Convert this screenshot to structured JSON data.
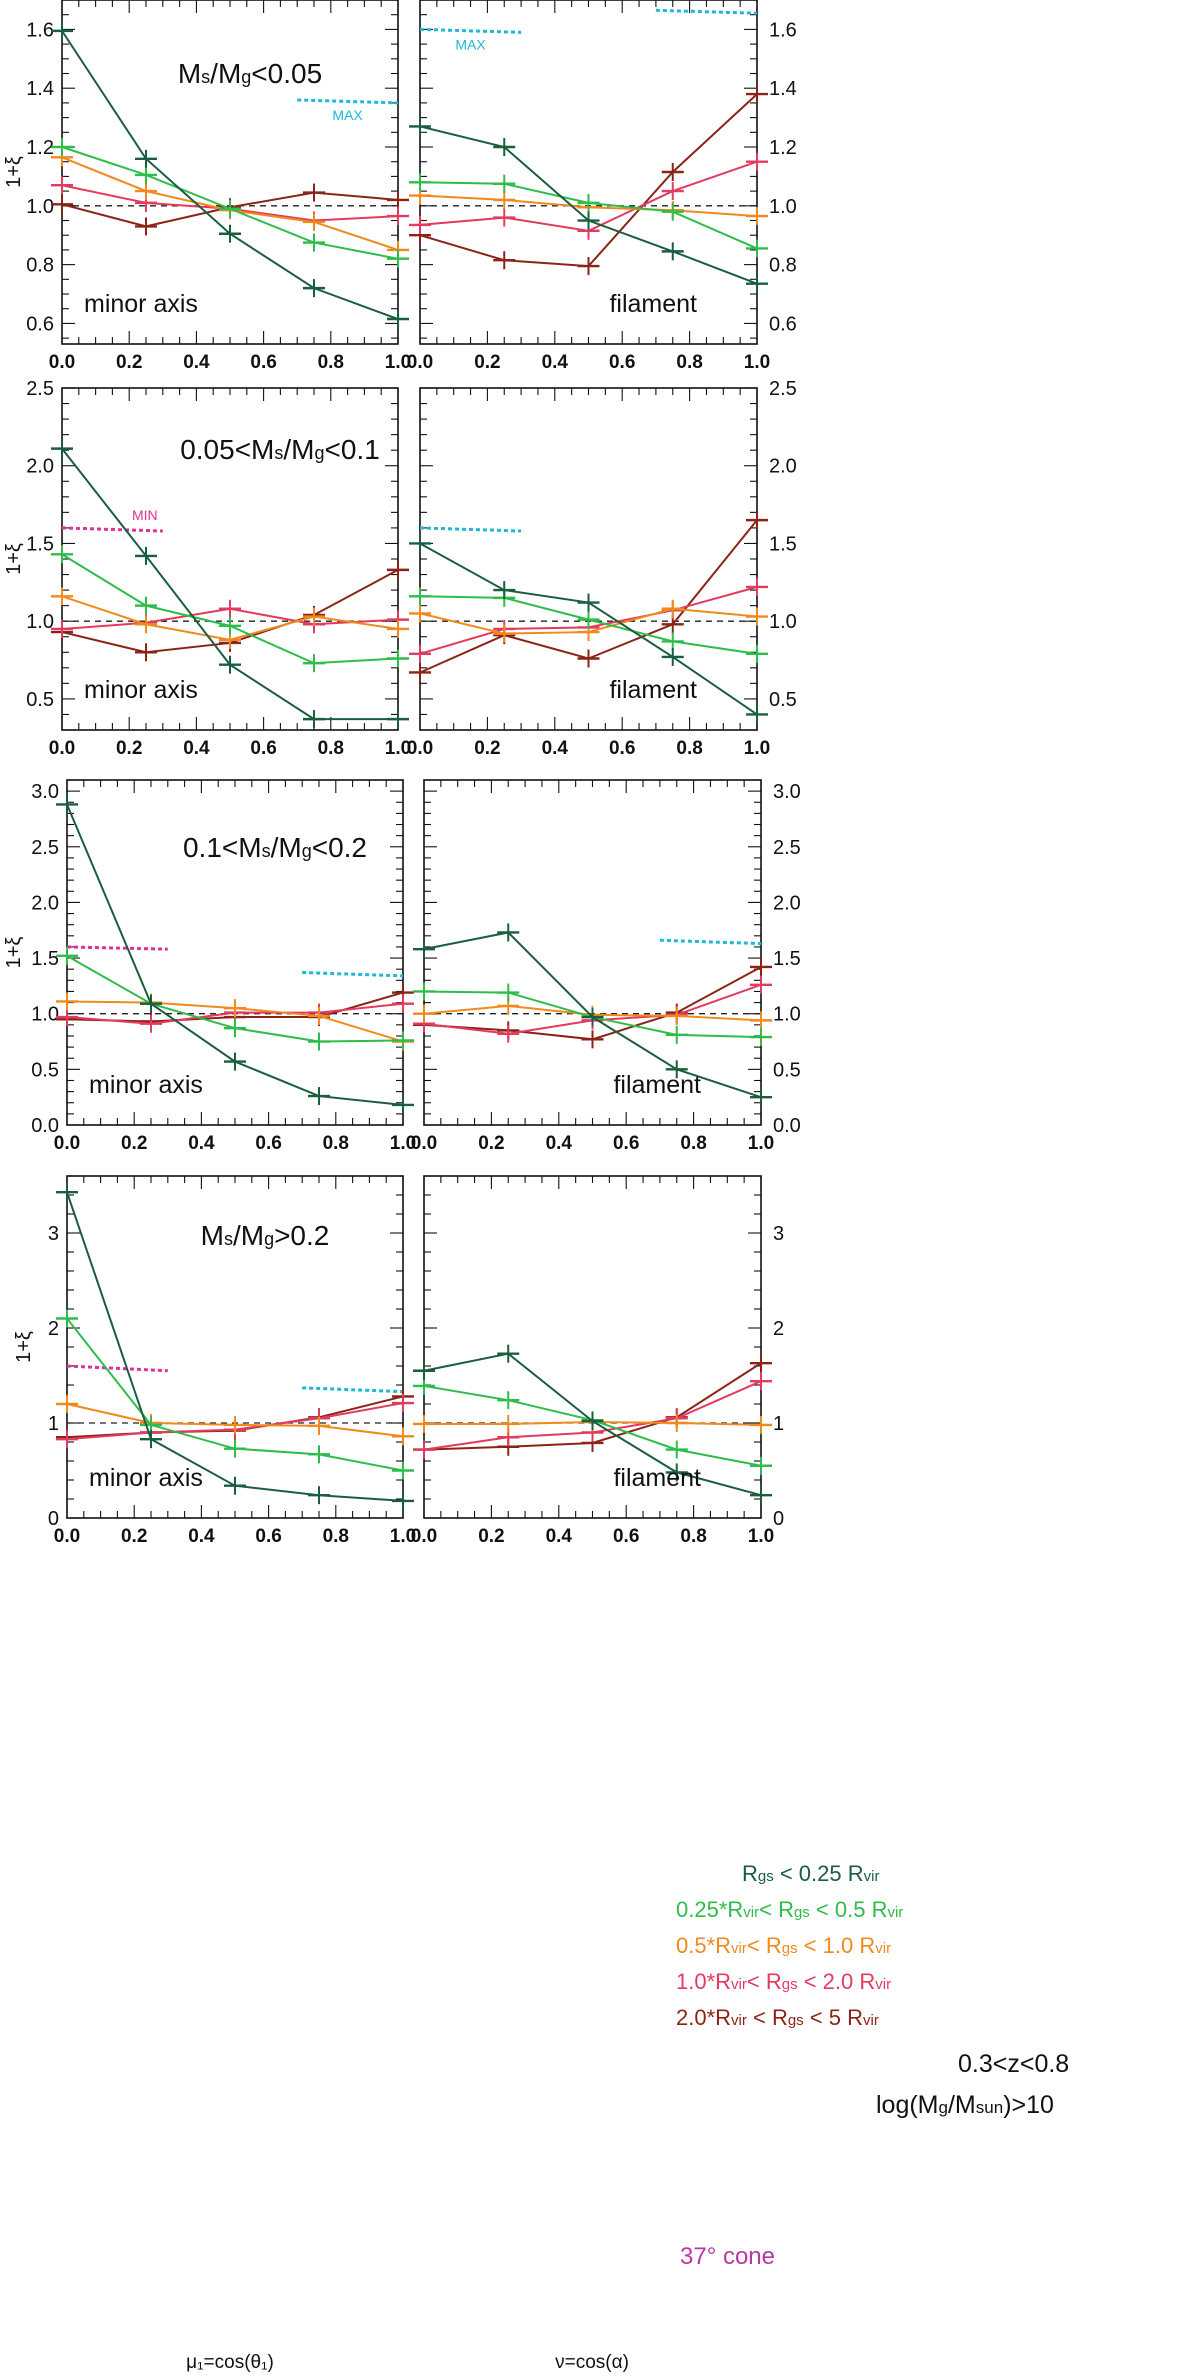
{
  "colors": {
    "r1": "#1a5e3f",
    "r2": "#2ebd4a",
    "r3": "#f08a1c",
    "r4": "#e33a5f",
    "r5": "#8b2416",
    "max_line": "#1fb8d6",
    "min_line": "#e0309a",
    "cone_text": "#b83aa0",
    "reference": "#222222"
  },
  "legend": {
    "entries": [
      {
        "key": "r1",
        "text": "R",
        "sub": "gs",
        "rest": " < 0.25 R",
        "sub2": "vir"
      },
      {
        "key": "r2",
        "text": "0.25*R",
        "sub": "vir",
        "rest": "< R",
        "sub2": "gs",
        "rest2": " < 0.5 R",
        "sub3": "vir"
      },
      {
        "key": "r3",
        "text": "0.5*R",
        "sub": "vir",
        "rest": "< R",
        "sub2": "gs",
        "rest2": " < 1.0 R",
        "sub3": "vir"
      },
      {
        "key": "r4",
        "text": "1.0*R",
        "sub": "vir",
        "rest": "< R",
        "sub2": "gs",
        "rest2": " < 2.0 R",
        "sub3": "vir"
      },
      {
        "key": "r5",
        "text": "2.0*R",
        "sub": "vir",
        "rest": " < R",
        "sub2": "gs",
        "rest2": " < 5 R",
        "sub3": "vir"
      }
    ],
    "redshift": "0.3<z<0.8",
    "mass_pre": "log(M",
    "mass_sub": "g",
    "mass_mid": "/M",
    "mass_sub2": "sun",
    "mass_post": ")>10",
    "cone": "37° cone"
  },
  "chart_data": {
    "type": "line",
    "x": [
      0.0,
      0.25,
      0.5,
      0.75,
      1.0
    ],
    "x_ticks": [
      "0.0",
      "0.2",
      "0.4",
      "0.6",
      "0.8",
      "1.0"
    ],
    "xlabel_left": "μ₁=cos(θ₁)",
    "xlabel_right": "ν=cos(α)",
    "ylabel": "1+ξ",
    "series_names": [
      "r1",
      "r2",
      "r3",
      "r4",
      "r5"
    ],
    "rows": [
      {
        "label_parts": [
          "M",
          "s",
          "/M",
          "g",
          "<0.05"
        ],
        "ylim": [
          0.53,
          1.7
        ],
        "yticks": [
          0.6,
          0.8,
          1.0,
          1.2,
          1.4,
          1.6
        ],
        "ytick_labels": [
          "0.6",
          "0.8",
          "1.0",
          "1.2",
          "1.4",
          "1.6"
        ],
        "minor_step": 0.05,
        "panels": [
          {
            "caption": "minor axis",
            "series": [
              [
                1.595,
                1.16,
                0.905,
                0.72,
                0.615
              ],
              [
                1.2,
                1.105,
                0.99,
                0.875,
                0.82
              ],
              [
                1.165,
                1.05,
                0.985,
                0.945,
                0.85
              ],
              [
                1.07,
                1.01,
                0.99,
                0.95,
                0.965
              ],
              [
                1.005,
                0.93,
                0.995,
                1.045,
                1.02
              ]
            ],
            "ref_lines": [
              {
                "type": "max",
                "label": "MAX",
                "x0": 0.7,
                "x1": 1.0,
                "y0": 1.36,
                "y1": 1.35
              }
            ]
          },
          {
            "caption": "filament",
            "series": [
              [
                1.27,
                1.2,
                0.95,
                0.845,
                0.735
              ],
              [
                1.08,
                1.075,
                1.01,
                0.98,
                0.855
              ],
              [
                1.035,
                1.02,
                0.995,
                0.985,
                0.965
              ],
              [
                0.935,
                0.96,
                0.915,
                1.05,
                1.15
              ],
              [
                0.9,
                0.815,
                0.795,
                1.115,
                1.38
              ]
            ],
            "ref_lines": [
              {
                "type": "max",
                "label": "MAX",
                "x0": 0.0,
                "x1": 0.3,
                "y0": 1.6,
                "y1": 1.59
              },
              {
                "type": "max",
                "label": "",
                "x0": 0.7,
                "x1": 1.0,
                "y0": 1.665,
                "y1": 1.655
              }
            ]
          }
        ]
      },
      {
        "label_parts": [
          "0.05<M",
          "s",
          "/M",
          "g",
          "<0.1"
        ],
        "ylim": [
          0.3,
          2.5
        ],
        "yticks": [
          0.5,
          1.0,
          1.5,
          2.0,
          2.5
        ],
        "ytick_labels": [
          "0.5",
          "1.0",
          "1.5",
          "2.0",
          "2.5"
        ],
        "minor_step": 0.1,
        "panels": [
          {
            "caption": "minor axis",
            "series": [
              [
                2.11,
                1.42,
                0.72,
                0.37,
                0.37
              ],
              [
                1.43,
                1.1,
                0.97,
                0.73,
                0.76
              ],
              [
                1.16,
                0.98,
                0.88,
                1.03,
                0.95
              ],
              [
                0.95,
                0.99,
                1.08,
                0.98,
                1.01
              ],
              [
                0.93,
                0.8,
                0.86,
                1.04,
                1.33
              ]
            ],
            "ref_lines": [
              {
                "type": "min",
                "label": "MIN",
                "x0": 0.0,
                "x1": 0.3,
                "y0": 1.6,
                "y1": 1.58
              }
            ]
          },
          {
            "caption": "filament",
            "series": [
              [
                1.5,
                1.2,
                1.12,
                0.77,
                0.4
              ],
              [
                1.16,
                1.15,
                1.01,
                0.87,
                0.79
              ],
              [
                1.05,
                0.92,
                0.93,
                1.08,
                1.03
              ],
              [
                0.79,
                0.95,
                0.96,
                1.07,
                1.22
              ],
              [
                0.67,
                0.91,
                0.76,
                0.98,
                1.65
              ]
            ],
            "ref_lines": [
              {
                "type": "max",
                "label": "",
                "x0": 0.0,
                "x1": 0.3,
                "y0": 1.6,
                "y1": 1.58
              }
            ]
          }
        ]
      },
      {
        "label_parts": [
          "0.1<M",
          "s",
          "/M",
          "g",
          "<0.2"
        ],
        "ylim": [
          0.0,
          3.1
        ],
        "yticks": [
          0.0,
          0.5,
          1.0,
          1.5,
          2.0,
          2.5,
          3.0
        ],
        "ytick_labels": [
          "0.0",
          "0.5",
          "1.0",
          "1.5",
          "2.0",
          "2.5",
          "3.0"
        ],
        "minor_step": 0.1,
        "panels": [
          {
            "caption": "minor axis",
            "series": [
              [
                2.88,
                1.09,
                0.57,
                0.26,
                0.18
              ],
              [
                1.52,
                1.09,
                0.87,
                0.75,
                0.76
              ],
              [
                1.11,
                1.1,
                1.05,
                0.98,
                0.75
              ],
              [
                0.97,
                0.91,
                1.01,
                1.01,
                1.09
              ],
              [
                0.95,
                0.93,
                0.97,
                0.97,
                1.19
              ]
            ],
            "ref_lines": [
              {
                "type": "min",
                "label": "",
                "x0": 0.0,
                "x1": 0.3,
                "y0": 1.6,
                "y1": 1.58
              },
              {
                "type": "max",
                "label": "",
                "x0": 0.7,
                "x1": 1.0,
                "y0": 1.37,
                "y1": 1.34
              }
            ]
          },
          {
            "caption": "filament",
            "series": [
              [
                1.58,
                1.73,
                0.97,
                0.5,
                0.25
              ],
              [
                1.2,
                1.19,
                0.97,
                0.81,
                0.79
              ],
              [
                1.0,
                1.07,
                0.99,
                0.98,
                0.94
              ],
              [
                0.91,
                0.82,
                0.94,
                0.99,
                1.26
              ],
              [
                0.9,
                0.85,
                0.77,
                1.01,
                1.42
              ]
            ],
            "ref_lines": [
              {
                "type": "max",
                "label": "",
                "x0": 0.7,
                "x1": 1.0,
                "y0": 1.66,
                "y1": 1.63
              }
            ]
          }
        ]
      },
      {
        "label_parts": [
          "M",
          "s",
          "/M",
          "g",
          ">0.2"
        ],
        "ylim": [
          0.0,
          3.6
        ],
        "yticks": [
          0,
          1,
          2,
          3
        ],
        "ytick_labels": [
          "0",
          "1",
          "2",
          "3"
        ],
        "minor_step": 0.2,
        "panels": [
          {
            "caption": "minor axis",
            "series": [
              [
                3.43,
                0.83,
                0.34,
                0.24,
                0.18
              ],
              [
                2.1,
                0.98,
                0.73,
                0.67,
                0.5
              ],
              [
                1.2,
                1.0,
                0.98,
                0.97,
                0.86
              ],
              [
                0.83,
                0.9,
                0.93,
                1.05,
                1.21
              ],
              [
                0.85,
                0.9,
                0.92,
                1.06,
                1.28
              ]
            ],
            "ref_lines": [
              {
                "type": "min",
                "label": "",
                "x0": 0.0,
                "x1": 0.3,
                "y0": 1.6,
                "y1": 1.55
              },
              {
                "type": "max",
                "label": "",
                "x0": 0.7,
                "x1": 1.0,
                "y0": 1.37,
                "y1": 1.33
              }
            ]
          },
          {
            "caption": "filament",
            "series": [
              [
                1.55,
                1.73,
                1.02,
                0.48,
                0.24
              ],
              [
                1.39,
                1.24,
                1.03,
                0.72,
                0.55
              ],
              [
                0.99,
                0.99,
                1.01,
                1.0,
                0.98
              ],
              [
                0.72,
                0.85,
                0.9,
                1.05,
                1.44
              ],
              [
                0.72,
                0.75,
                0.79,
                1.06,
                1.63
              ]
            ],
            "ref_lines": []
          }
        ]
      }
    ]
  }
}
